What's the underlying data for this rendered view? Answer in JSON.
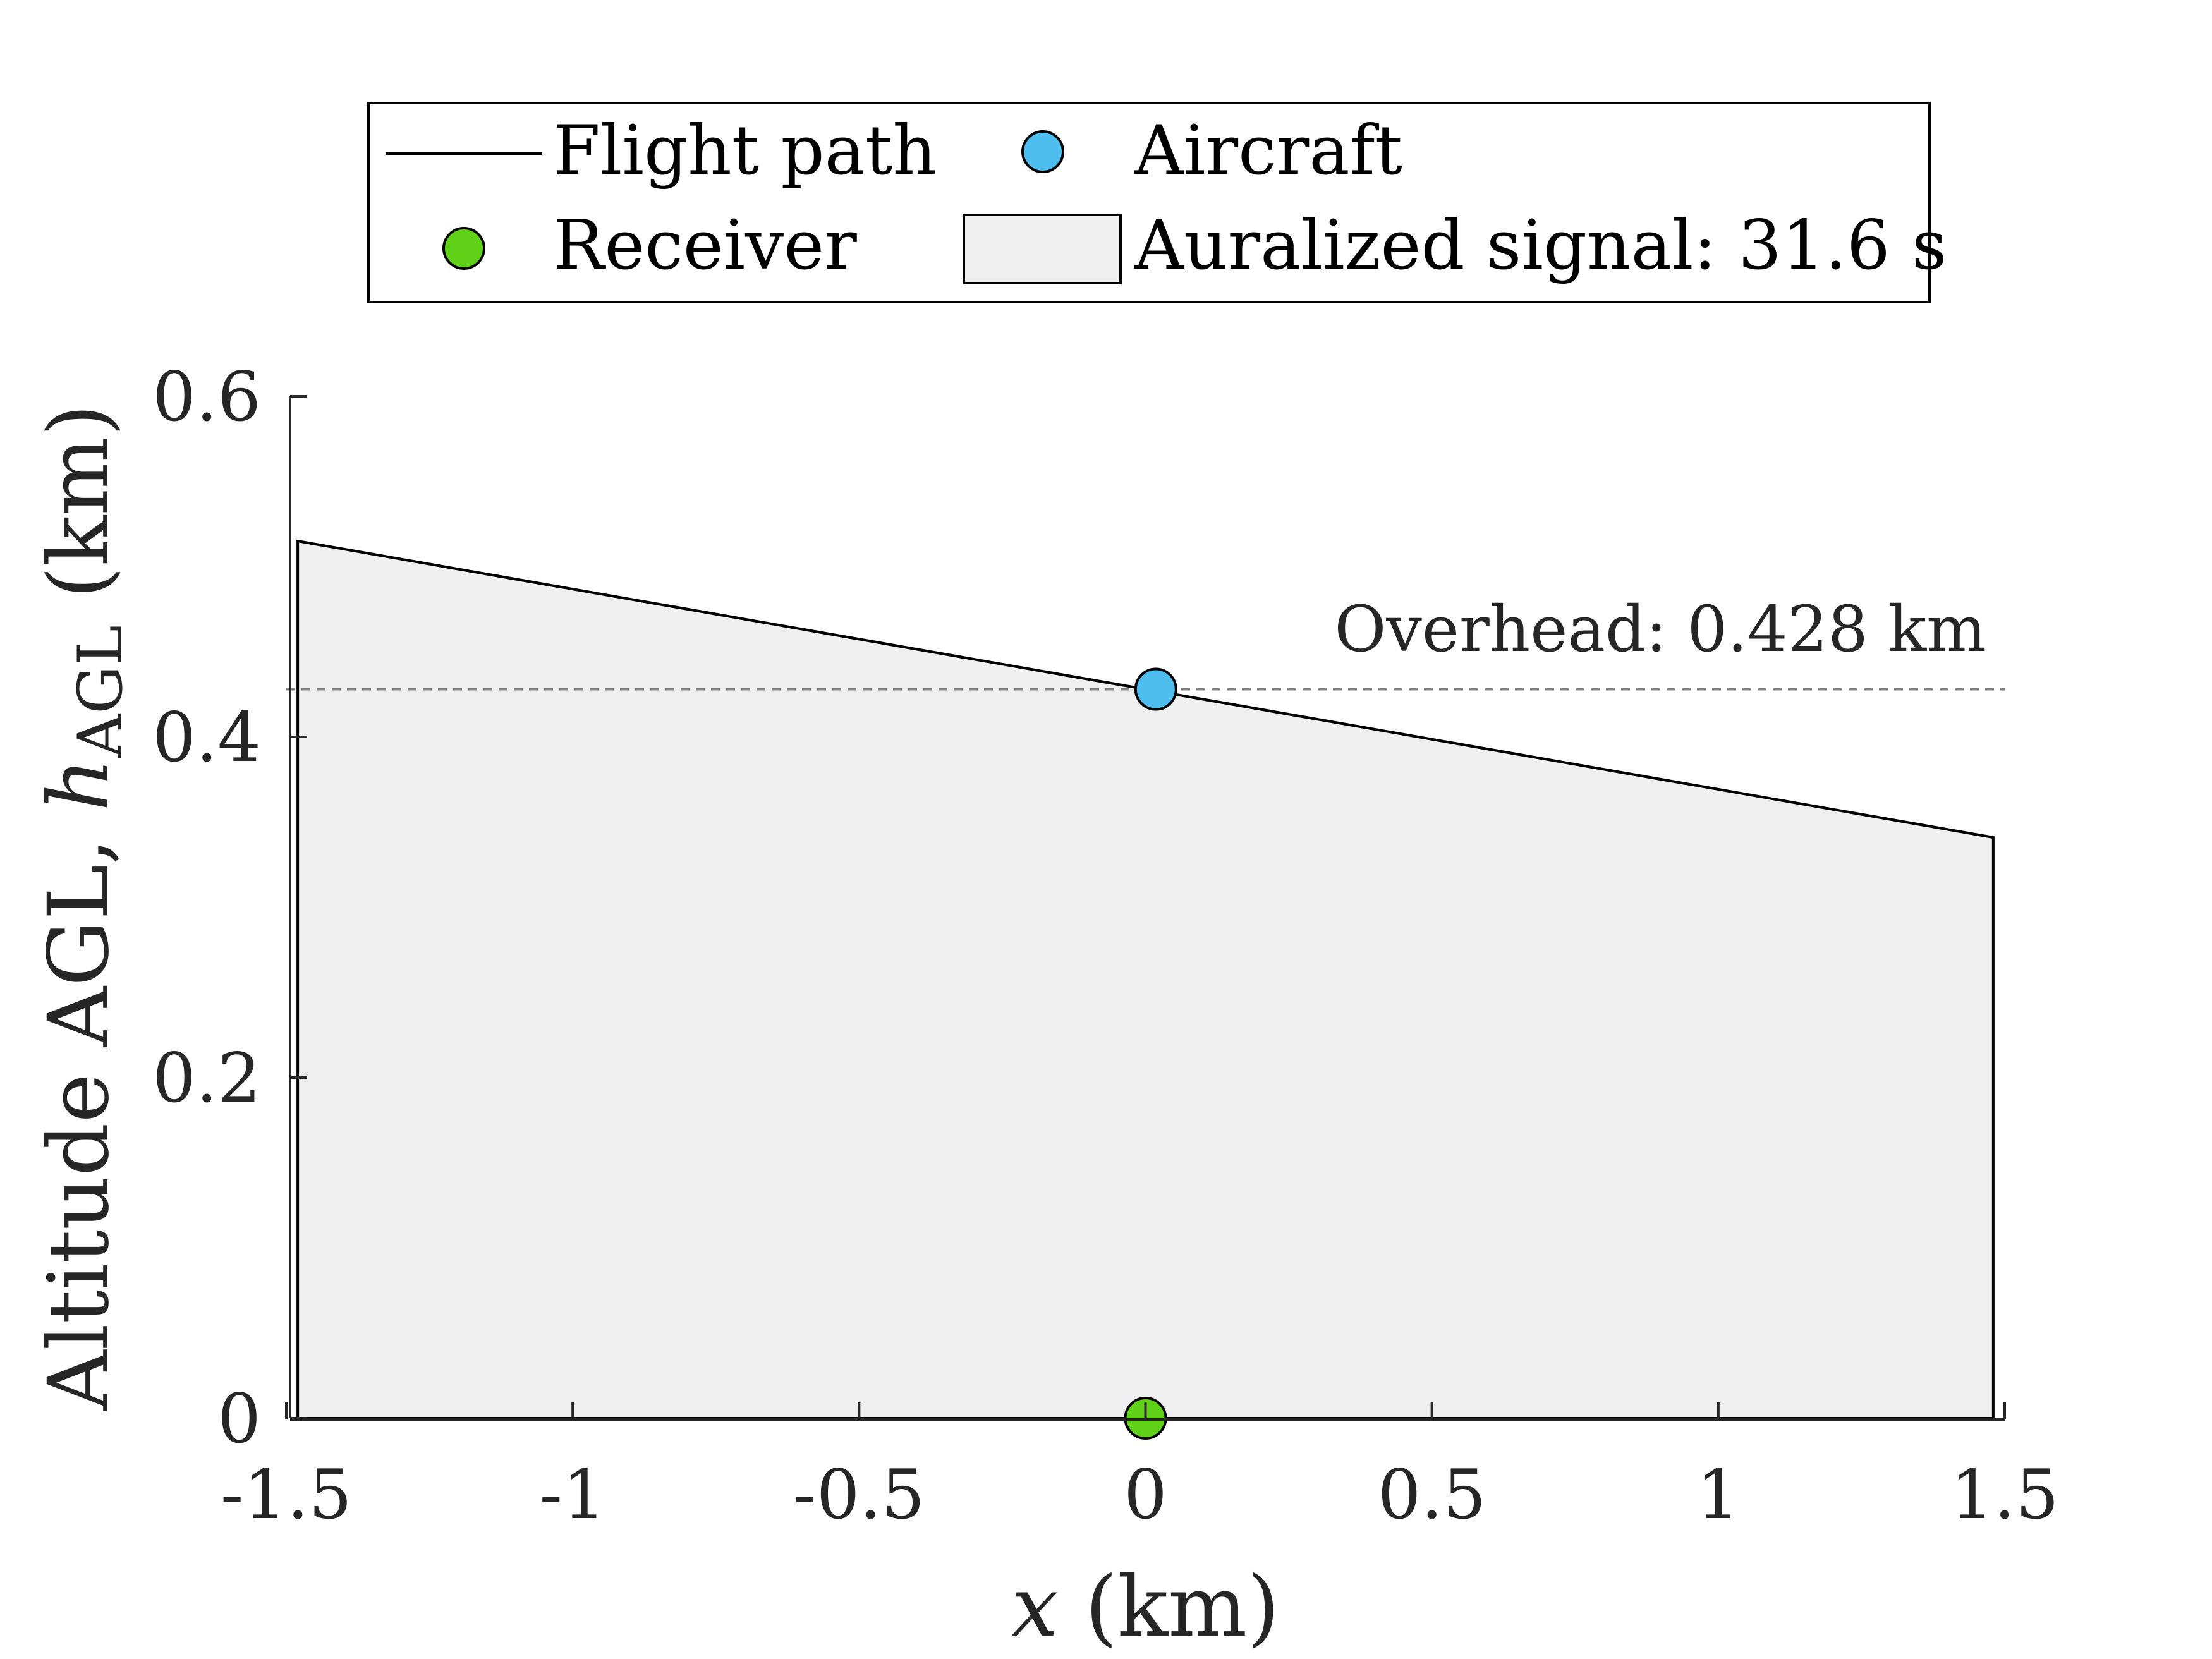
{
  "chart_data": {
    "type": "line",
    "title": "",
    "xlabel": {
      "var": "x",
      "unit": "(km)"
    },
    "ylabel": {
      "prefix": "Altitude AGL,",
      "var": "h",
      "subscript": "AGL",
      "unit": "(km)"
    },
    "xlim": [
      -1.5,
      1.5
    ],
    "ylim": [
      0,
      0.6
    ],
    "xticks": [
      -1.5,
      -1,
      -0.5,
      0,
      0.5,
      1,
      1.5
    ],
    "xtick_labels": [
      "-1.5",
      "-1",
      "-0.5",
      "0",
      "0.5",
      "1",
      "1.5"
    ],
    "yticks": [
      0,
      0.2,
      0.4,
      0.6
    ],
    "ytick_labels": [
      "0",
      "0.2",
      "0.4",
      "0.6"
    ],
    "grid": false,
    "legend_position": "top (outside plot)",
    "series": [
      {
        "name": "Flight path",
        "kind": "line",
        "color": "#000000",
        "x": [
          -1.48,
          1.48
        ],
        "y": [
          0.515,
          0.341
        ]
      },
      {
        "name": "Aircraft",
        "kind": "marker",
        "color": "#4DBEEE",
        "x": [
          0.018
        ],
        "y": [
          0.428
        ]
      },
      {
        "name": "Receiver",
        "kind": "marker",
        "color": "#5FD116",
        "x": [
          0.0
        ],
        "y": [
          0.0
        ]
      },
      {
        "name": "Auralized signal: 31.6 s",
        "kind": "area",
        "color": "#EFEFEF",
        "x": [
          -1.48,
          1.48
        ],
        "y": [
          0.515,
          0.341
        ]
      }
    ],
    "annotations": [
      {
        "text": "Overhead: 0.428 km",
        "y": 0.428,
        "line_style": "dashed",
        "color": "#808080"
      }
    ]
  }
}
